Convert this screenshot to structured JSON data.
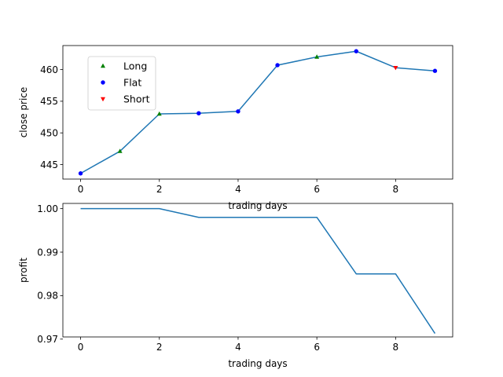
{
  "chart_data": [
    {
      "type": "line",
      "xlabel": "trading days",
      "ylabel": "close price",
      "xlim": [
        -0.45,
        9.45
      ],
      "ylim": [
        442.7,
        463.8
      ],
      "xticks": [
        0,
        2,
        4,
        6,
        8
      ],
      "yticks": [
        445,
        450,
        455,
        460
      ],
      "x": [
        0,
        1,
        2,
        3,
        4,
        5,
        6,
        7,
        8,
        9
      ],
      "values": [
        443.6,
        447.1,
        453.0,
        453.1,
        453.4,
        460.7,
        462.0,
        462.9,
        460.3,
        459.8
      ],
      "line_color": "#1f77b4",
      "markers": [
        {
          "name": "Long",
          "color": "#008000",
          "shape": "triangle-up",
          "points": [
            [
              1,
              447.1
            ],
            [
              2,
              453.0
            ],
            [
              6,
              462.0
            ]
          ]
        },
        {
          "name": "Flat",
          "color": "#0000ff",
          "shape": "circle",
          "points": [
            [
              0,
              443.6
            ],
            [
              3,
              453.1
            ],
            [
              4,
              453.4
            ],
            [
              5,
              460.7
            ],
            [
              7,
              462.9
            ],
            [
              9,
              459.8
            ]
          ]
        },
        {
          "name": "Short",
          "color": "#ff0000",
          "shape": "triangle-down",
          "points": [
            [
              8,
              460.3
            ]
          ]
        }
      ],
      "legend": {
        "placement": "upper-left",
        "entries": [
          "Long",
          "Flat",
          "Short"
        ]
      }
    },
    {
      "type": "line",
      "xlabel": "trading days",
      "ylabel": "profit",
      "xlim": [
        -0.45,
        9.45
      ],
      "ylim": [
        0.9705,
        1.0012
      ],
      "xticks": [
        0,
        2,
        4,
        6,
        8
      ],
      "yticks": [
        0.97,
        0.98,
        0.99,
        1.0
      ],
      "ytick_labels": [
        "0.97",
        "0.98",
        "0.99",
        "1.00"
      ],
      "x": [
        0,
        1,
        2,
        3,
        4,
        5,
        6,
        7,
        8,
        9
      ],
      "values": [
        1.0,
        1.0,
        1.0,
        0.998,
        0.998,
        0.998,
        0.998,
        0.985,
        0.985,
        0.9713
      ],
      "line_color": "#1f77b4"
    }
  ]
}
